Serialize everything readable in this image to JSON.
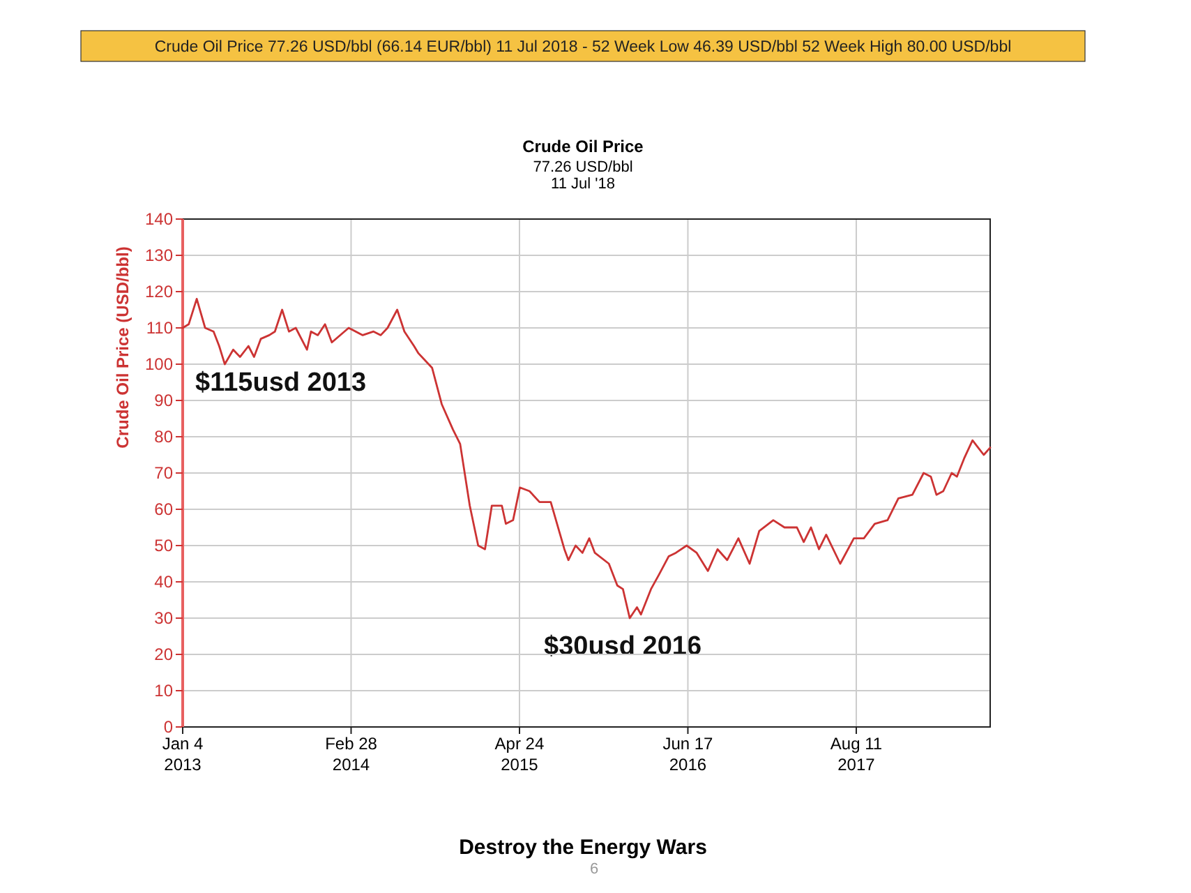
{
  "chart_data": {
    "type": "line",
    "title": "Crude Oil Price",
    "subtitle": "77.26 USD/bbl\n11 Jul '18",
    "ylabel": "Crude Oil Price (USD/bbl)",
    "x": [
      "2013-01-04",
      "2013-01-19",
      "2013-02-08",
      "2013-03-01",
      "2013-03-22",
      "2013-04-05",
      "2013-04-19",
      "2013-05-10",
      "2013-05-27",
      "2013-06-17",
      "2013-07-01",
      "2013-07-18",
      "2013-08-08",
      "2013-08-22",
      "2013-09-09",
      "2013-09-26",
      "2013-10-13",
      "2013-11-10",
      "2013-11-20",
      "2013-12-07",
      "2013-12-25",
      "2014-01-11",
      "2014-02-22",
      "2014-03-29",
      "2014-04-25",
      "2014-05-13",
      "2014-05-30",
      "2014-06-23",
      "2014-07-11",
      "2014-08-04",
      "2014-08-15",
      "2014-09-18",
      "2014-10-12",
      "2014-11-09",
      "2014-11-27",
      "2014-12-21",
      "2015-01-11",
      "2015-01-28",
      "2015-02-14",
      "2015-03-11",
      "2015-03-21",
      "2015-04-08",
      "2015-04-25",
      "2015-05-19",
      "2015-06-13",
      "2015-07-11",
      "2015-08-14",
      "2015-08-24",
      "2015-09-11",
      "2015-09-28",
      "2015-10-15",
      "2015-10-29",
      "2015-12-03",
      "2015-12-24",
      "2016-01-07",
      "2016-01-24",
      "2016-02-11",
      "2016-02-21",
      "2016-03-17",
      "2016-04-06",
      "2016-04-30",
      "2016-05-18",
      "2016-06-14",
      "2016-07-09",
      "2016-08-06",
      "2016-08-30",
      "2016-09-23",
      "2016-10-21",
      "2016-11-18",
      "2016-12-12",
      "2017-01-16",
      "2017-02-13",
      "2017-03-16",
      "2017-04-02",
      "2017-04-20",
      "2017-05-10",
      "2017-05-28",
      "2017-07-02",
      "2017-08-05",
      "2017-08-30",
      "2017-09-26",
      "2017-10-28",
      "2017-11-24",
      "2017-12-29",
      "2018-01-26",
      "2018-02-13",
      "2018-02-27",
      "2018-03-16",
      "2018-04-06",
      "2018-04-19",
      "2018-05-07",
      "2018-05-28",
      "2018-06-11",
      "2018-06-25",
      "2018-07-11"
    ],
    "series": [
      {
        "color": "#cc3333",
        "values": [
          110,
          111,
          118,
          110,
          109,
          105,
          100,
          104,
          102,
          105,
          102,
          107,
          108,
          109,
          115,
          109,
          110,
          104,
          109,
          108,
          111,
          106,
          110,
          108,
          109,
          108,
          110,
          115,
          109,
          105,
          103,
          99,
          89,
          82,
          78,
          61,
          50,
          49,
          61,
          61,
          56,
          57,
          66,
          65,
          62,
          62,
          49,
          46,
          50,
          48,
          52,
          48,
          45,
          39,
          38,
          30,
          33,
          31,
          38,
          42,
          47,
          48,
          50,
          48,
          43,
          49,
          46,
          52,
          45,
          54,
          57,
          55,
          55,
          51,
          55,
          49,
          53,
          45,
          52,
          52,
          56,
          57,
          63,
          64,
          70,
          69,
          64,
          65,
          70,
          69,
          74,
          79,
          77,
          75,
          77
        ]
      }
    ],
    "xlim": [
      "2013-01-04",
      "2018-07-11"
    ],
    "xticks": [
      {
        "value": "2013-01-04",
        "label": "Jan 4\n2013"
      },
      {
        "value": "2014-02-28",
        "label": "Feb 28\n2014"
      },
      {
        "value": "2015-04-24",
        "label": "Apr 24\n2015"
      },
      {
        "value": "2016-06-17",
        "label": "Jun 17\n2016"
      },
      {
        "value": "2017-08-11",
        "label": "Aug 11\n2017"
      }
    ],
    "ylim": [
      0,
      140
    ],
    "yticks": [
      0,
      10,
      20,
      30,
      40,
      50,
      60,
      70,
      80,
      90,
      100,
      110,
      120,
      130,
      140
    ],
    "grid": true,
    "marker": "none",
    "line_style": "solid",
    "annotations": [
      "Crude Oil Price 77.26 USD/bbl (66.14 EUR/bbl) 11 Jul 2018 - 52 Week Low 46.39 USD/bbl 52 Week High 80.00 USD/bbl",
      "$115usd 2013",
      "$30usd 2016",
      "Destroy the Energy Wars",
      "6"
    ]
  }
}
